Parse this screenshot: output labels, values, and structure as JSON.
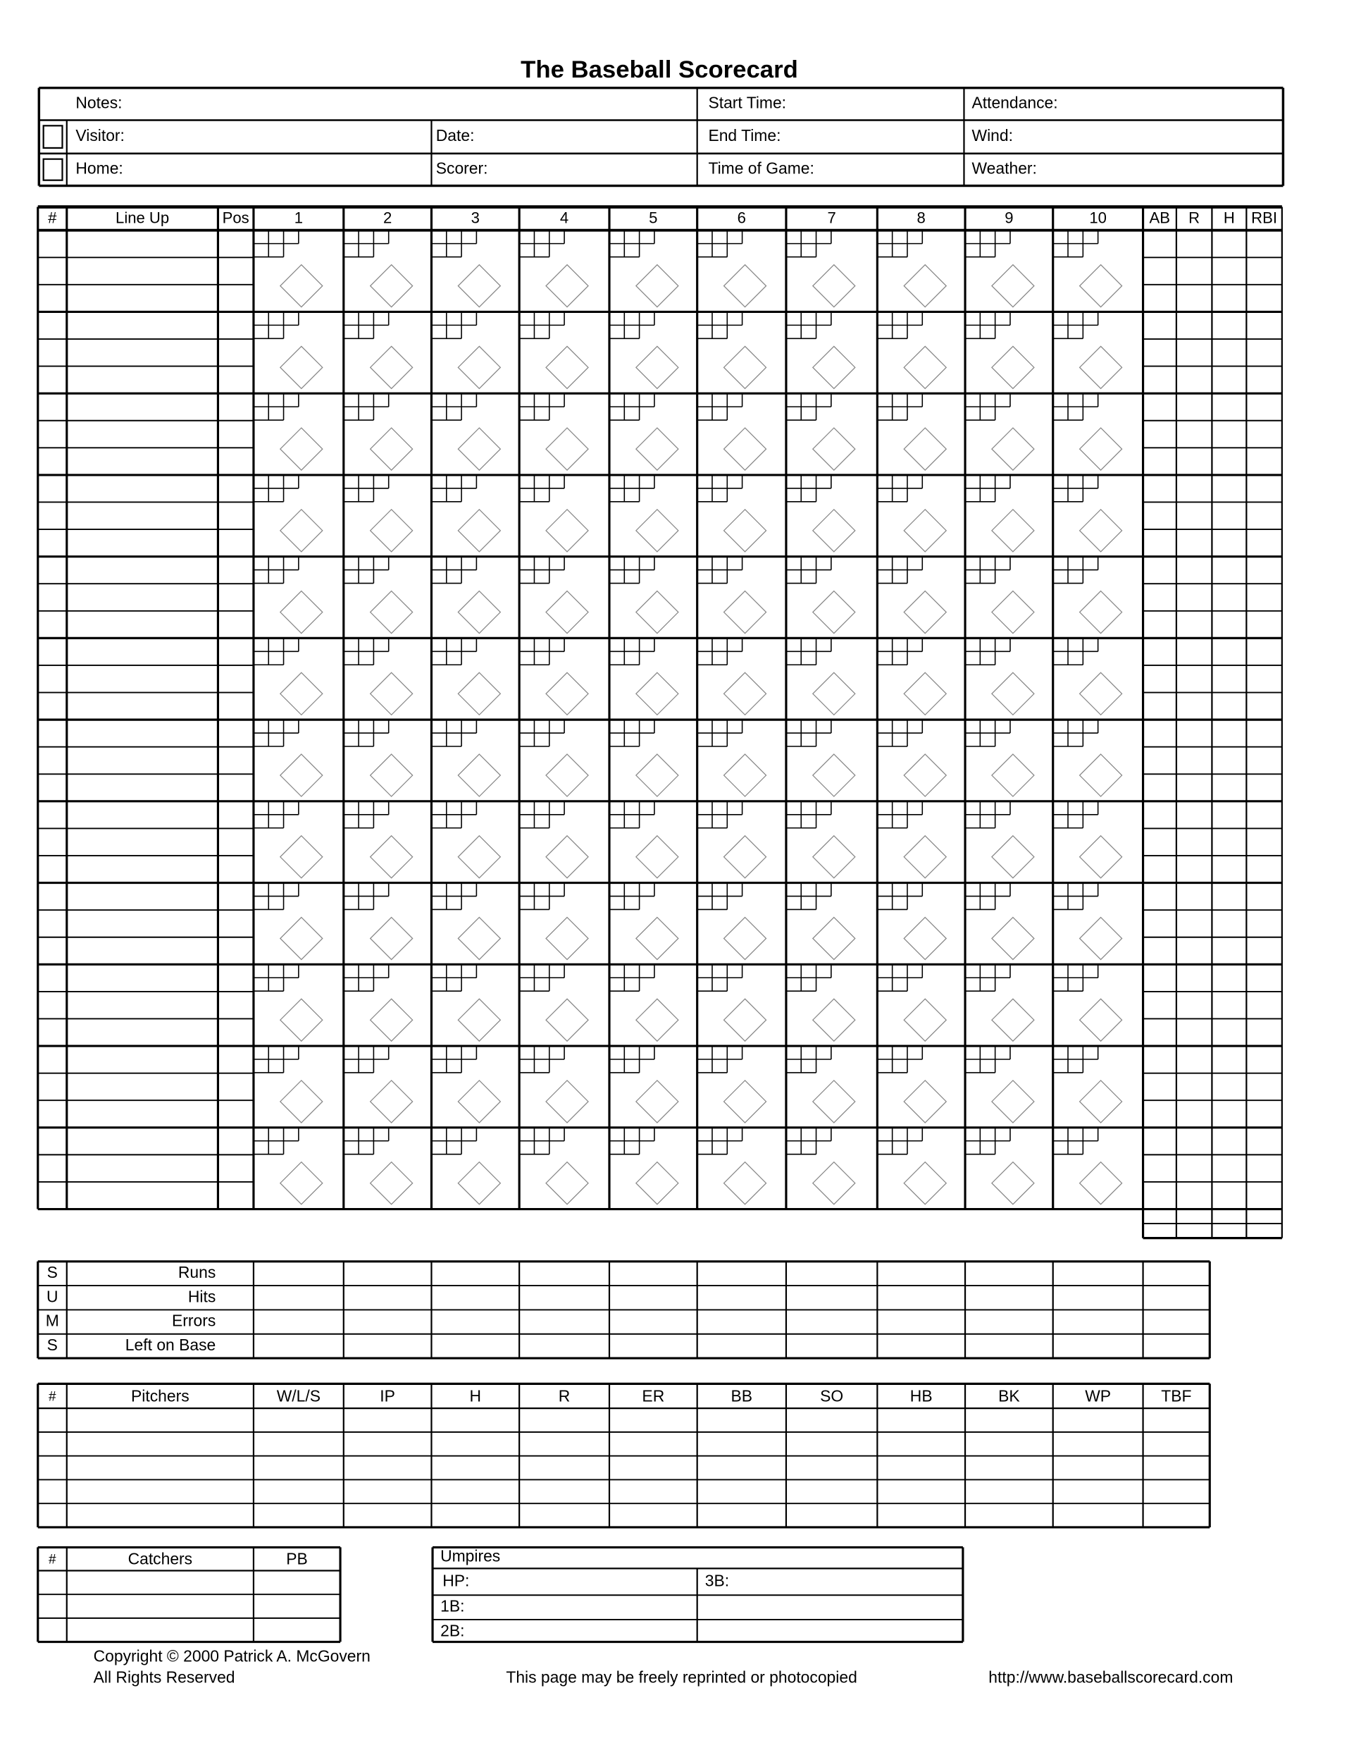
{
  "title": "The Baseball Scorecard",
  "header": {
    "notes": "Notes:",
    "visitor": "Visitor:",
    "home": "Home:",
    "date": "Date:",
    "scorer": "Scorer:",
    "start_time": "Start Time:",
    "end_time": "End Time:",
    "time_of_game": "Time of Game:",
    "attendance": "Attendance:",
    "wind": "Wind:",
    "weather": "Weather:"
  },
  "lineup": {
    "columns": [
      "#",
      "Line Up",
      "Pos",
      "1",
      "2",
      "3",
      "4",
      "5",
      "6",
      "7",
      "8",
      "9",
      "10",
      "AB",
      "R",
      "H",
      "RBI"
    ]
  },
  "sums": {
    "letters": [
      "S",
      "U",
      "M",
      "S"
    ],
    "rows": [
      "Runs",
      "Hits",
      "Errors",
      "Left on Base"
    ]
  },
  "pitchers": {
    "columns": [
      "#",
      "Pitchers",
      "W/L/S",
      "IP",
      "H",
      "R",
      "ER",
      "BB",
      "SO",
      "HB",
      "BK",
      "WP",
      "TBF"
    ]
  },
  "catchers": {
    "columns": [
      "#",
      "Catchers",
      "PB"
    ]
  },
  "umpires": {
    "title": "Umpires",
    "hp": "HP:",
    "b3": "3B:",
    "b1": "1B:",
    "b2": "2B:"
  },
  "footer": {
    "copyright": "Copyright © 2000 Patrick A. McGovern",
    "rights": "All Rights Reserved",
    "reprint": "This page may be freely reprinted or photocopied",
    "url": "http://www.baseballscorecard.com"
  }
}
